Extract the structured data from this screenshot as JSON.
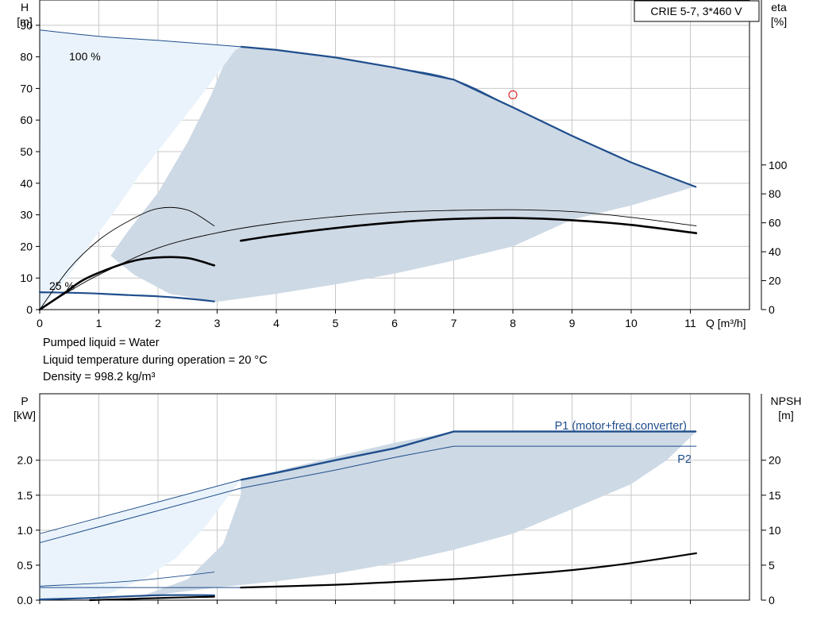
{
  "chart_data": [
    {
      "type": "line",
      "title": "CRIE 5-7, 3*460 V",
      "xlabel": "Q [m³/h]",
      "ylabel": "H\n[m]",
      "y2label": "eta\n[%]",
      "xlim": [
        0,
        12
      ],
      "ylim": [
        0,
        98
      ],
      "y2lim": [
        0,
        214
      ],
      "grid": true,
      "x_ticks": [
        0,
        1,
        2,
        3,
        4,
        5,
        6,
        7,
        8,
        9,
        10,
        11
      ],
      "y_ticks": [
        0,
        10,
        20,
        30,
        40,
        50,
        60,
        70,
        80,
        90
      ],
      "y2_ticks": [
        0,
        20,
        40,
        60,
        80,
        100
      ],
      "annotations": [
        "100 %",
        "25 %"
      ],
      "duty_point": {
        "x": 8.0,
        "y": 68
      },
      "regions": {
        "light": [
          [
            0,
            88.5
          ],
          [
            0.5,
            87.5
          ],
          [
            1,
            86.5
          ],
          [
            2,
            85.2
          ],
          [
            3,
            84
          ],
          [
            3.4,
            83.2
          ],
          [
            3.3,
            82
          ],
          [
            3.1,
            77
          ],
          [
            2.7,
            67
          ],
          [
            2.2,
            55
          ],
          [
            1.7,
            43
          ],
          [
            1.3,
            32
          ],
          [
            0.9,
            22
          ],
          [
            0.5,
            11
          ],
          [
            0.2,
            4
          ],
          [
            0,
            0
          ]
        ],
        "dark": [
          [
            3.4,
            83.2
          ],
          [
            4,
            82.2
          ],
          [
            5,
            79.8
          ],
          [
            6,
            76.6
          ],
          [
            7,
            72.8
          ],
          [
            8,
            64
          ],
          [
            9,
            55
          ],
          [
            10,
            46.6
          ],
          [
            11.1,
            39
          ],
          [
            10,
            33
          ],
          [
            9,
            28.5
          ],
          [
            8,
            20
          ],
          [
            7,
            15.5
          ],
          [
            6,
            11.4
          ],
          [
            5,
            8
          ],
          [
            4,
            5
          ],
          [
            3,
            2.5
          ],
          [
            2.2,
            5
          ],
          [
            1.6,
            11
          ],
          [
            1.2,
            17
          ],
          [
            1.5,
            25
          ],
          [
            2.0,
            37
          ],
          [
            2.5,
            53
          ],
          [
            2.9,
            68
          ],
          [
            3.1,
            77
          ],
          [
            3.3,
            82
          ]
        ]
      },
      "series": [
        {
          "name": "100 %",
          "values": [
            [
              0,
              88.5
            ],
            [
              1,
              86.5
            ],
            [
              2,
              85.2
            ],
            [
              3.4,
              83.2
            ],
            [
              4,
              82.2
            ],
            [
              5,
              79.8
            ],
            [
              6,
              76.6
            ],
            [
              7,
              72.8
            ],
            [
              8,
              64
            ],
            [
              9,
              55
            ],
            [
              10,
              46.6
            ],
            [
              11.1,
              38.8
            ]
          ]
        },
        {
          "name": "25 %",
          "values": [
            [
              0,
              5.5
            ],
            [
              0.8,
              5.2
            ],
            [
              1.5,
              4.6
            ],
            [
              2,
              4.2
            ],
            [
              2.5,
              3.5
            ],
            [
              2.95,
              2.6
            ]
          ]
        },
        {
          "values": [
            [
              0,
              0
            ],
            [
              0.5,
              5.8
            ],
            [
              1,
              11
            ],
            [
              2,
              19.5
            ],
            [
              3,
              24.3
            ],
            [
              4,
              27.4
            ],
            [
              5,
              29.4
            ],
            [
              6,
              30.8
            ],
            [
              7,
              31.4
            ],
            [
              8,
              31.6
            ],
            [
              9,
              31
            ],
            [
              10,
              29.2
            ],
            [
              11.1,
              26.5
            ]
          ]
        },
        {
          "values": [
            [
              3.4,
              21.8
            ],
            [
              4,
              23.5
            ],
            [
              5,
              25.8
            ],
            [
              6,
              27.6
            ],
            [
              7,
              28.7
            ],
            [
              8,
              29
            ],
            [
              9,
              28.3
            ],
            [
              10,
              26.8
            ],
            [
              11.1,
              24.2
            ]
          ]
        },
        {
          "values": [
            [
              0,
              0
            ],
            [
              0.5,
              13
            ],
            [
              1,
              22
            ],
            [
              1.5,
              28
            ],
            [
              2,
              32
            ],
            [
              2.5,
              31.5
            ],
            [
              2.95,
              26.5
            ]
          ]
        },
        {
          "values": [
            [
              0,
              0
            ],
            [
              0.4,
              5
            ],
            [
              0.8,
              10
            ],
            [
              1.5,
              15
            ],
            [
              2,
              16.5
            ],
            [
              2.5,
              16.3
            ],
            [
              2.95,
              14
            ]
          ]
        }
      ]
    },
    {
      "type": "line",
      "xlabel": "",
      "ylabel": "P\n[kW]",
      "y2label": "NPSH\n[m]",
      "xlim": [
        0,
        12
      ],
      "ylim": [
        0,
        2.95
      ],
      "y2lim": [
        0,
        29.5
      ],
      "grid": true,
      "y_ticks": [
        0.0,
        0.5,
        1.0,
        1.5,
        2.0
      ],
      "y2_ticks": [
        0,
        5,
        10,
        15,
        20
      ],
      "regions": {
        "light": [
          [
            0,
            0.93
          ],
          [
            3.4,
            1.72
          ],
          [
            3.2,
            1.5
          ],
          [
            2.8,
            1.05
          ],
          [
            2.3,
            0.6
          ],
          [
            1.8,
            0.32
          ],
          [
            1.2,
            0.1
          ],
          [
            0.5,
            0.02
          ],
          [
            0,
            0
          ]
        ],
        "dark": [
          [
            3.4,
            1.72
          ],
          [
            5,
            2.05
          ],
          [
            6,
            2.25
          ],
          [
            7,
            2.41
          ],
          [
            11.1,
            2.41
          ],
          [
            10.6,
            2.0
          ],
          [
            10,
            1.66
          ],
          [
            9,
            1.3
          ],
          [
            8,
            0.95
          ],
          [
            7,
            0.72
          ],
          [
            6,
            0.53
          ],
          [
            5,
            0.38
          ],
          [
            4,
            0.27
          ],
          [
            3,
            0.18
          ],
          [
            2.2,
            0.1
          ],
          [
            1.6,
            0.02
          ],
          [
            2.5,
            0.3
          ],
          [
            3.1,
            0.8
          ],
          [
            3.4,
            1.5
          ]
        ]
      },
      "series": [
        {
          "name": "P1 (motor+freq.converter)",
          "values": [
            [
              0,
              0.95
            ],
            [
              3.4,
              1.72
            ],
            [
              4,
              1.82
            ],
            [
              5,
              2.0
            ],
            [
              6,
              2.17
            ],
            [
              7,
              2.41
            ],
            [
              11.1,
              2.41
            ]
          ]
        },
        {
          "name": "P2",
          "values": [
            [
              0,
              0.82
            ],
            [
              3.4,
              1.6
            ],
            [
              5,
              1.86
            ],
            [
              6,
              2.04
            ],
            [
              7,
              2.2
            ],
            [
              11.1,
              2.2
            ]
          ]
        },
        {
          "values": [
            [
              0,
              0.01
            ],
            [
              0.8,
              0.03
            ],
            [
              2,
              0.07
            ],
            [
              2.95,
              0.07
            ]
          ]
        },
        {
          "values": [
            [
              0,
              0.18
            ],
            [
              3.4,
              0.18
            ]
          ]
        },
        {
          "values": [
            [
              0,
              0.2
            ],
            [
              1.5,
              0.27
            ],
            [
              2.95,
              0.4
            ]
          ]
        },
        {
          "values": [
            [
              0.85,
              0.0
            ],
            [
              2,
              0.03
            ],
            [
              2.95,
              0.05
            ]
          ]
        },
        {
          "values": [
            [
              3.4,
              0.18
            ],
            [
              5,
              0.22
            ],
            [
              6,
              0.26
            ],
            [
              7,
              0.3
            ],
            [
              8,
              0.36
            ],
            [
              9,
              0.43
            ],
            [
              10,
              0.53
            ],
            [
              11.1,
              0.67
            ]
          ]
        }
      ]
    }
  ],
  "info": {
    "line1": "Pumped liquid = Water",
    "line2": "Liquid temperature during operation = 20 °C",
    "line3": "Density = 998.2 kg/m³"
  },
  "colors": {
    "grid": "#c8c8c8",
    "light_region": "#eaf3fb",
    "dark_region": "#cdd9e5",
    "blue_line": "#1f4e8c",
    "black_line": "#000000",
    "duty_point": "#e03030"
  }
}
